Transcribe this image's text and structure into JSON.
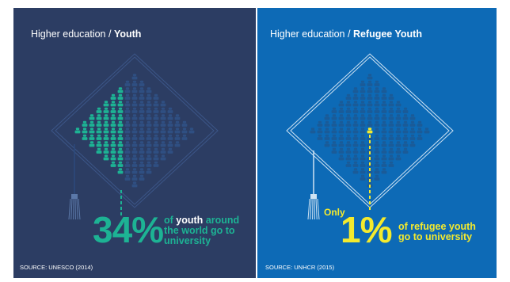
{
  "chart_data": [
    {
      "type": "pictogram",
      "title": "Higher education / Youth",
      "title_prefix": "Higher education / ",
      "title_bold": "Youth",
      "value_percent": 34,
      "big_value": "34",
      "big_value_suffix": "%",
      "caption_lead": "of",
      "caption_bold": "youth",
      "caption_tail_1": "around",
      "caption_line_2": "the world go to",
      "caption_line_3": "university",
      "source": "SOURCE: UNESCO (2014)",
      "colors": {
        "background": "#2c3d63",
        "icon": "#2f4f82",
        "highlight": "#1db394",
        "text": "#ffffff"
      }
    },
    {
      "type": "pictogram",
      "title": "Higher education / Refugee Youth",
      "title_prefix": "Higher education / ",
      "title_bold": "Refugee Youth",
      "value_percent": 1,
      "prefix_word": "Only",
      "big_value": "1",
      "big_value_suffix": "%",
      "caption_line_1": "of refugee youth",
      "caption_line_2": "go to university",
      "source": "SOURCE: UNHCR (2015)",
      "colors": {
        "background": "#0d6ab6",
        "icon": "#1a5b98",
        "highlight": "#f4ea2d",
        "text": "#ffffff"
      }
    }
  ]
}
